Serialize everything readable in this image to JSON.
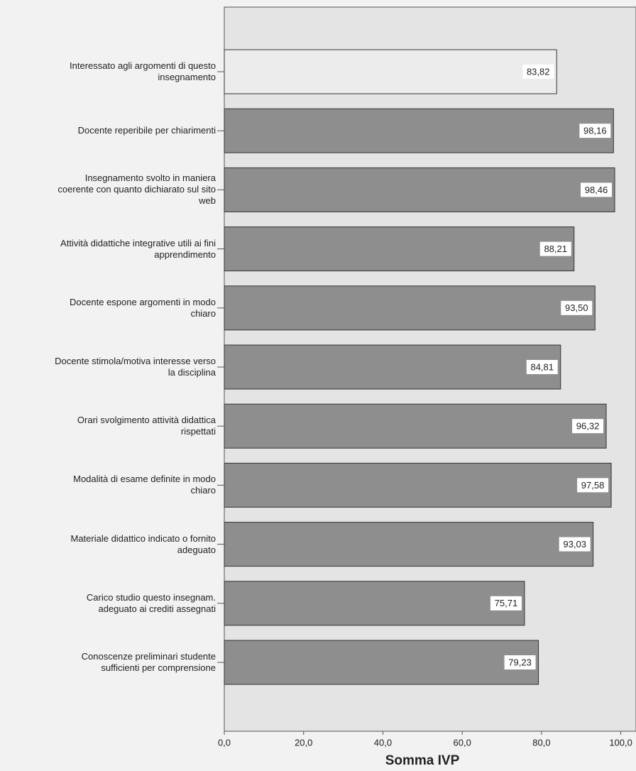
{
  "chart_data": {
    "type": "bar",
    "orientation": "horizontal",
    "categories": [
      "Interessato agli argomenti di questo\ninsegnamento",
      "Docente reperibile per chiarimenti",
      "Insegnamento svolto in maniera\ncoerente con quanto dichiarato sul sito\nweb",
      "Attività didattiche integrative utili ai fini\napprendimento",
      "Docente espone argomenti in modo\nchiaro",
      "Docente stimola/motiva interesse verso\nla disciplina",
      "Orari svolgimento attività didattica\nrispettati",
      "Modalità di esame definite in modo\nchiaro",
      "Materiale didattico indicato o fornito\nadeguato",
      "Carico studio questo insegnam.\nadeguato ai crediti assegnati",
      "Conoscenze preliminari studente\nsufficienti per comprensione"
    ],
    "values": [
      83.82,
      98.16,
      98.46,
      88.21,
      93.5,
      84.81,
      96.32,
      97.58,
      93.03,
      75.71,
      79.23
    ],
    "value_labels": [
      "83,82",
      "98,16",
      "98,46",
      "88,21",
      "93,50",
      "84,81",
      "96,32",
      "97,58",
      "93,03",
      "75,71",
      "79,23"
    ],
    "colors": [
      "#ececec",
      "#8e8e8e",
      "#8e8e8e",
      "#8e8e8e",
      "#8e8e8e",
      "#8e8e8e",
      "#8e8e8e",
      "#8e8e8e",
      "#8e8e8e",
      "#8e8e8e",
      "#8e8e8e"
    ],
    "xlim": [
      0,
      100
    ],
    "xticks": [
      {
        "value": 0,
        "label": "0,0"
      },
      {
        "value": 20,
        "label": "20,0"
      },
      {
        "value": 40,
        "label": "40,0"
      },
      {
        "value": 60,
        "label": "60,0"
      },
      {
        "value": 80,
        "label": "80,0"
      },
      {
        "value": 100,
        "label": "100,0"
      }
    ],
    "x_label": "Somma IVP"
  }
}
